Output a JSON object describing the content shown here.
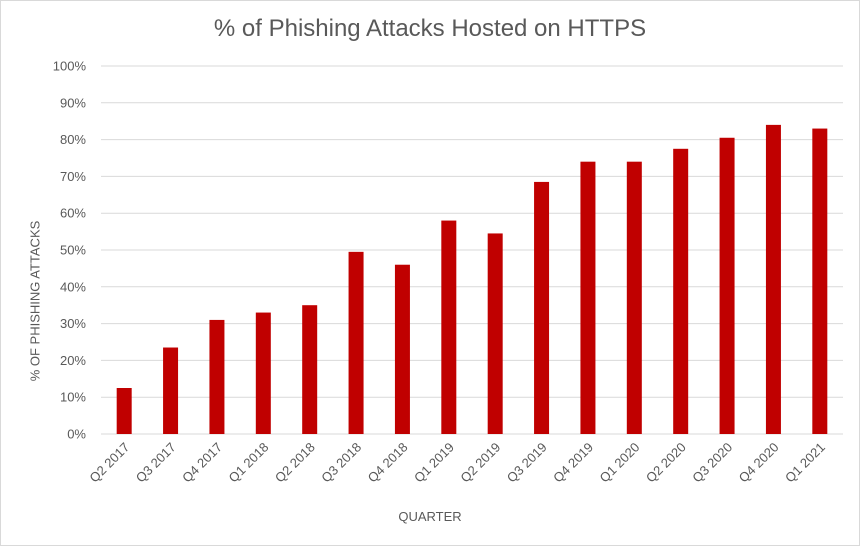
{
  "chart_data": {
    "type": "bar",
    "title": "% of Phishing Attacks Hosted on HTTPS",
    "xlabel": "QUARTER",
    "ylabel": "% OF PHISHING ATTACKS",
    "categories": [
      "Q2 2017",
      "Q3 2017",
      "Q4 2017",
      "Q1 2018",
      "Q2 2018",
      "Q3 2018",
      "Q4 2018",
      "Q1 2019",
      "Q2 2019",
      "Q3 2019",
      "Q4 2019",
      "Q1 2020",
      "Q2 2020",
      "Q3 2020",
      "Q4 2020",
      "Q1 2021"
    ],
    "values": [
      12.5,
      23.5,
      31,
      33,
      35,
      49.5,
      46,
      58,
      54.5,
      68.5,
      74,
      74,
      77.5,
      80.5,
      84,
      83
    ],
    "ylim": [
      0,
      100
    ],
    "yticks": [
      "0%",
      "10%",
      "20%",
      "30%",
      "40%",
      "50%",
      "60%",
      "70%",
      "80%",
      "90%",
      "100%"
    ],
    "grid": true,
    "legend": "none",
    "colors": {
      "bar": "#c00000",
      "grid": "#d9d9d9",
      "text": "#595959"
    }
  }
}
